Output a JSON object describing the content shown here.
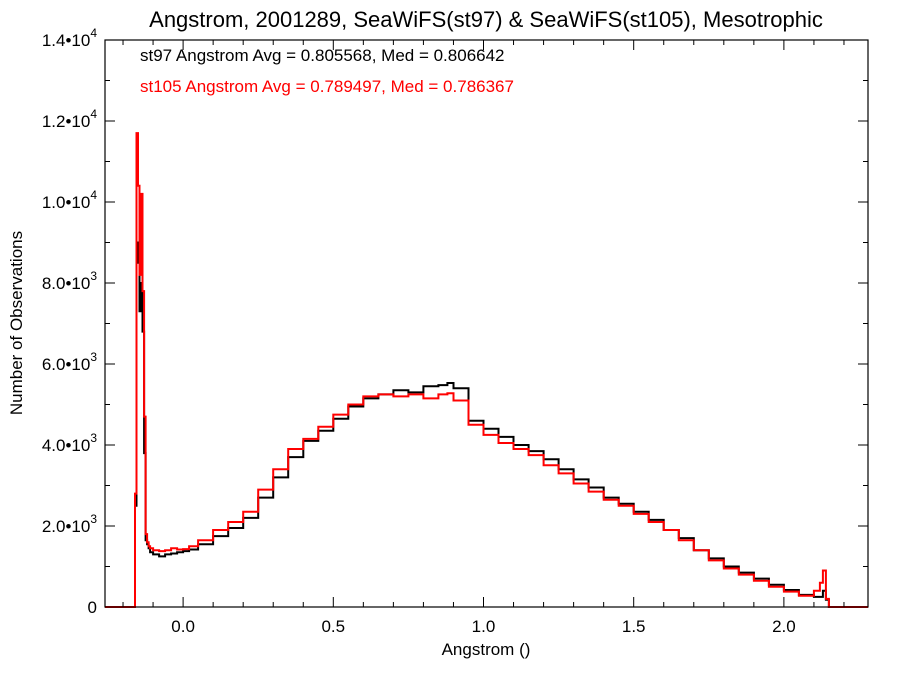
{
  "chart_data": {
    "type": "line",
    "title": "Angstrom, 2001289, SeaWiFS(st97) & SeaWiFS(st105), Mesotrophic",
    "xlabel": "Angstrom ()",
    "ylabel": "Number of Observations",
    "xlim": [
      -0.26,
      2.28
    ],
    "ylim": [
      0,
      14000
    ],
    "grid": false,
    "x_ticks": [
      {
        "value": 0.0,
        "label": "0.0"
      },
      {
        "value": 0.5,
        "label": "0.5"
      },
      {
        "value": 1.0,
        "label": "1.0"
      },
      {
        "value": 1.5,
        "label": "1.5"
      },
      {
        "value": 2.0,
        "label": "2.0"
      }
    ],
    "y_ticks": [
      {
        "value": 0,
        "mantissa": "0",
        "exp": ""
      },
      {
        "value": 2000,
        "mantissa": "2.0•10",
        "exp": "3"
      },
      {
        "value": 4000,
        "mantissa": "4.0•10",
        "exp": "3"
      },
      {
        "value": 6000,
        "mantissa": "6.0•10",
        "exp": "3"
      },
      {
        "value": 8000,
        "mantissa": "8.0•10",
        "exp": "3"
      },
      {
        "value": 10000,
        "mantissa": "1.0•10",
        "exp": "4"
      },
      {
        "value": 12000,
        "mantissa": "1.2•10",
        "exp": "4"
      },
      {
        "value": 14000,
        "mantissa": "1.4•10",
        "exp": "4"
      }
    ],
    "annotations": [
      {
        "text": "st97 Angstrom Avg = 0.805568, Med = 0.806642",
        "color": "#000000"
      },
      {
        "text": "st105 Angstrom Avg = 0.789497, Med = 0.786367",
        "color": "#ff0000"
      }
    ],
    "series": [
      {
        "color": "#000000",
        "x": [
          -0.26,
          -0.16,
          -0.155,
          -0.15,
          -0.145,
          -0.14,
          -0.135,
          -0.13,
          -0.125,
          -0.12,
          -0.115,
          -0.11,
          -0.1,
          -0.08,
          -0.06,
          -0.04,
          -0.02,
          0.0,
          0.02,
          0.05,
          0.1,
          0.15,
          0.2,
          0.25,
          0.3,
          0.35,
          0.4,
          0.45,
          0.5,
          0.55,
          0.6,
          0.65,
          0.7,
          0.75,
          0.8,
          0.85,
          0.88,
          0.9,
          0.95,
          1.0,
          1.05,
          1.1,
          1.15,
          1.2,
          1.25,
          1.3,
          1.35,
          1.4,
          1.45,
          1.5,
          1.55,
          1.6,
          1.65,
          1.7,
          1.75,
          1.8,
          1.85,
          1.9,
          1.95,
          2.0,
          2.05,
          2.1,
          2.12,
          2.13,
          2.14,
          2.15,
          2.28
        ],
        "y": [
          0,
          2500,
          9000,
          8500,
          7300,
          8000,
          6800,
          3800,
          1650,
          1550,
          1450,
          1350,
          1300,
          1250,
          1300,
          1320,
          1350,
          1380,
          1420,
          1550,
          1750,
          1950,
          2200,
          2700,
          3200,
          3700,
          4100,
          4350,
          4650,
          4950,
          5150,
          5250,
          5350,
          5300,
          5450,
          5480,
          5530,
          5400,
          4600,
          4400,
          4200,
          4000,
          3850,
          3650,
          3400,
          3150,
          2950,
          2700,
          2550,
          2350,
          2150,
          1900,
          1700,
          1400,
          1200,
          1000,
          850,
          700,
          550,
          420,
          300,
          250,
          250,
          400,
          180,
          0,
          0
        ]
      },
      {
        "color": "#ff0000",
        "x": [
          -0.26,
          -0.16,
          -0.155,
          -0.15,
          -0.145,
          -0.14,
          -0.135,
          -0.13,
          -0.125,
          -0.12,
          -0.115,
          -0.11,
          -0.1,
          -0.08,
          -0.06,
          -0.04,
          -0.02,
          0.0,
          0.02,
          0.05,
          0.1,
          0.15,
          0.2,
          0.25,
          0.3,
          0.35,
          0.4,
          0.45,
          0.5,
          0.55,
          0.6,
          0.65,
          0.7,
          0.75,
          0.8,
          0.85,
          0.88,
          0.9,
          0.95,
          1.0,
          1.05,
          1.1,
          1.15,
          1.2,
          1.25,
          1.3,
          1.35,
          1.4,
          1.45,
          1.5,
          1.55,
          1.6,
          1.65,
          1.7,
          1.75,
          1.8,
          1.85,
          1.9,
          1.95,
          2.0,
          2.05,
          2.1,
          2.12,
          2.13,
          2.14,
          2.15,
          2.28
        ],
        "y": [
          0,
          2800,
          11700,
          10400,
          8200,
          10200,
          7800,
          4700,
          1800,
          1600,
          1500,
          1450,
          1400,
          1380,
          1400,
          1450,
          1420,
          1430,
          1500,
          1650,
          1900,
          2100,
          2350,
          2900,
          3400,
          3900,
          4150,
          4450,
          4750,
          5000,
          5200,
          5250,
          5200,
          5250,
          5150,
          5250,
          5280,
          5100,
          4500,
          4250,
          4050,
          3900,
          3750,
          3500,
          3300,
          3050,
          2850,
          2650,
          2500,
          2300,
          2100,
          1900,
          1650,
          1400,
          1150,
          950,
          800,
          650,
          500,
          380,
          280,
          400,
          600,
          900,
          200,
          0,
          0
        ]
      }
    ]
  }
}
